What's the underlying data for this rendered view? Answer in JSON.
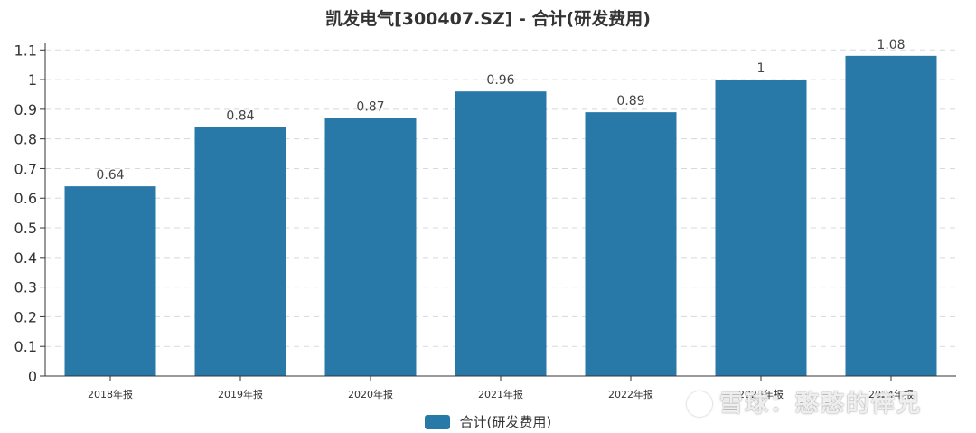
{
  "chart_data": {
    "type": "bar",
    "title": "凯发电气[300407.SZ] - 合计(研发费用)",
    "categories": [
      "2018年报",
      "2019年报",
      "2020年报",
      "2021年报",
      "2022年报",
      "2023年报",
      "2024年报"
    ],
    "series": [
      {
        "name": "合计(研发费用)",
        "values": [
          0.64,
          0.84,
          0.87,
          0.96,
          0.89,
          1,
          1.08
        ],
        "data_labels": [
          "0.64",
          "0.84",
          "0.87",
          "0.96",
          "0.89",
          "1",
          "1.08"
        ]
      }
    ],
    "yticks": [
      "0",
      "0.1",
      "0.2",
      "0.3",
      "0.4",
      "0.5",
      "0.6",
      "0.7",
      "0.8",
      "0.9",
      "1",
      "1.1"
    ],
    "ylim": [
      0,
      1.1
    ],
    "grid": true,
    "legend_position": "bottom-center",
    "bar_color": "#2878a8"
  },
  "watermark": {
    "text": "雪球：憨憨的倖兄",
    "icon": "snowball-logo-icon"
  }
}
